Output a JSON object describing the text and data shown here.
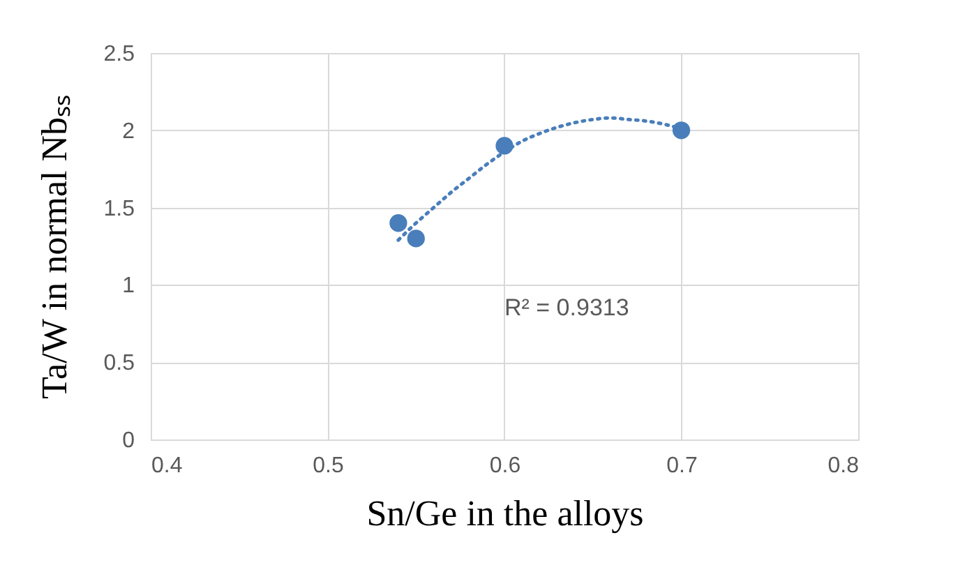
{
  "chart_data": {
    "type": "scatter",
    "xlabel": "Sn/Ge in the alloys",
    "ylabel": "Ta/W in normal Nbₛₛ",
    "xlim": [
      0.4,
      0.8
    ],
    "xticks": [
      0.4,
      0.5,
      0.6,
      0.7,
      0.8
    ],
    "ylim": [
      0,
      2.5
    ],
    "yticks": [
      0,
      0.5,
      1,
      1.5,
      2,
      2.5
    ],
    "grid": true,
    "marker": "circle",
    "series": [
      {
        "color": "#4a7ebb",
        "x": [
          0.54,
          0.55,
          0.6,
          0.7
        ],
        "values": [
          1.4,
          1.3,
          1.9,
          2.0
        ]
      },
      {
        "type": "line",
        "color": "#4a7ebb",
        "line_style": "dotted",
        "marker": "none",
        "x": [
          0.54,
          0.55,
          0.56,
          0.57,
          0.58,
          0.59,
          0.6,
          0.61,
          0.62,
          0.63,
          0.64,
          0.65,
          0.66,
          0.67,
          0.68,
          0.69,
          0.7
        ],
        "values": [
          1.29,
          1.4,
          1.5,
          1.6,
          1.69,
          1.78,
          1.86,
          1.93,
          1.98,
          2.02,
          2.05,
          2.07,
          2.08,
          2.07,
          2.06,
          2.04,
          2.01
        ]
      }
    ],
    "annotations": [
      "R² = 0.9313"
    ]
  }
}
